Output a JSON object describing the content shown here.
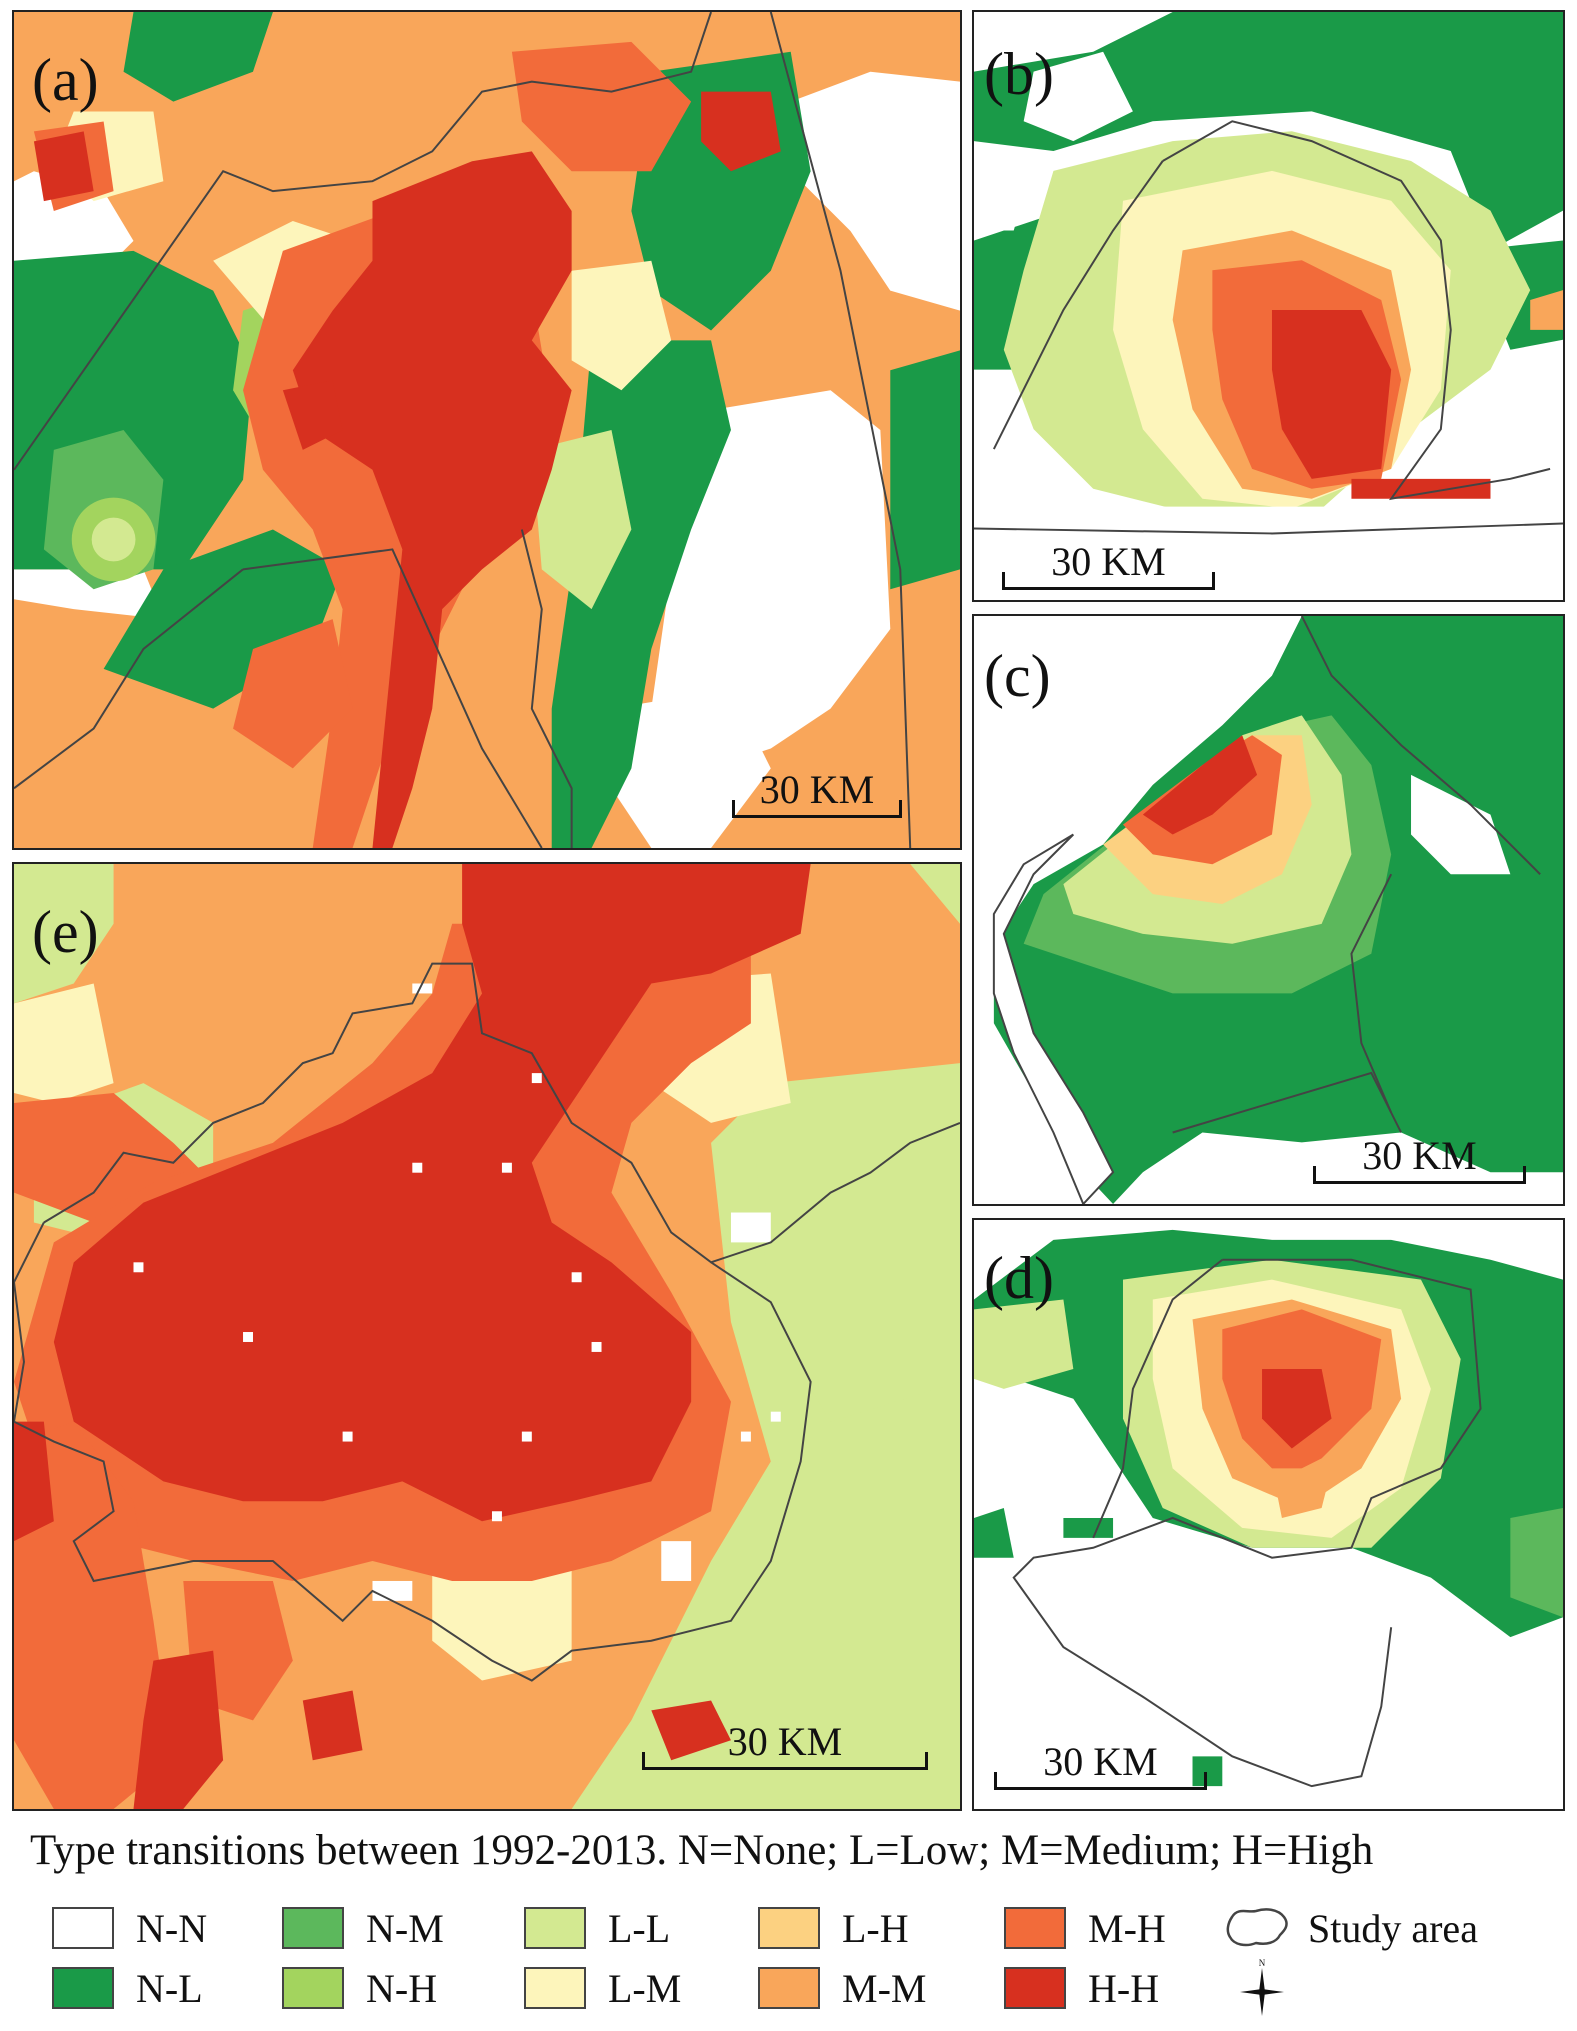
{
  "panels": [
    {
      "id": "a",
      "label": "(a)",
      "scale": "30 KM"
    },
    {
      "id": "b",
      "label": "(b)",
      "scale": "30 KM"
    },
    {
      "id": "c",
      "label": "(c)",
      "scale": "30 KM"
    },
    {
      "id": "d",
      "label": "(d)",
      "scale": "30 KM"
    },
    {
      "id": "e",
      "label": "(e)",
      "scale": "30 KM"
    }
  ],
  "legend": {
    "caption": "Type transitions between 1992-2013. N=None; L=Low; M=Medium; H=High",
    "items": [
      {
        "label": "N-N",
        "color": "#ffffff"
      },
      {
        "label": "N-M",
        "color": "#5cb85c"
      },
      {
        "label": "L-L",
        "color": "#d3e991"
      },
      {
        "label": "L-H",
        "color": "#fcd181"
      },
      {
        "label": "M-H",
        "color": "#f26b3a"
      },
      {
        "label": "N-L",
        "color": "#1a9a48"
      },
      {
        "label": "N-H",
        "color": "#a3d45e"
      },
      {
        "label": "L-M",
        "color": "#fdf5bb"
      },
      {
        "label": "M-M",
        "color": "#f9a65a"
      },
      {
        "label": "H-H",
        "color": "#d7301f"
      }
    ],
    "study_area_label": "Study area",
    "north_arrow_label": "N"
  }
}
